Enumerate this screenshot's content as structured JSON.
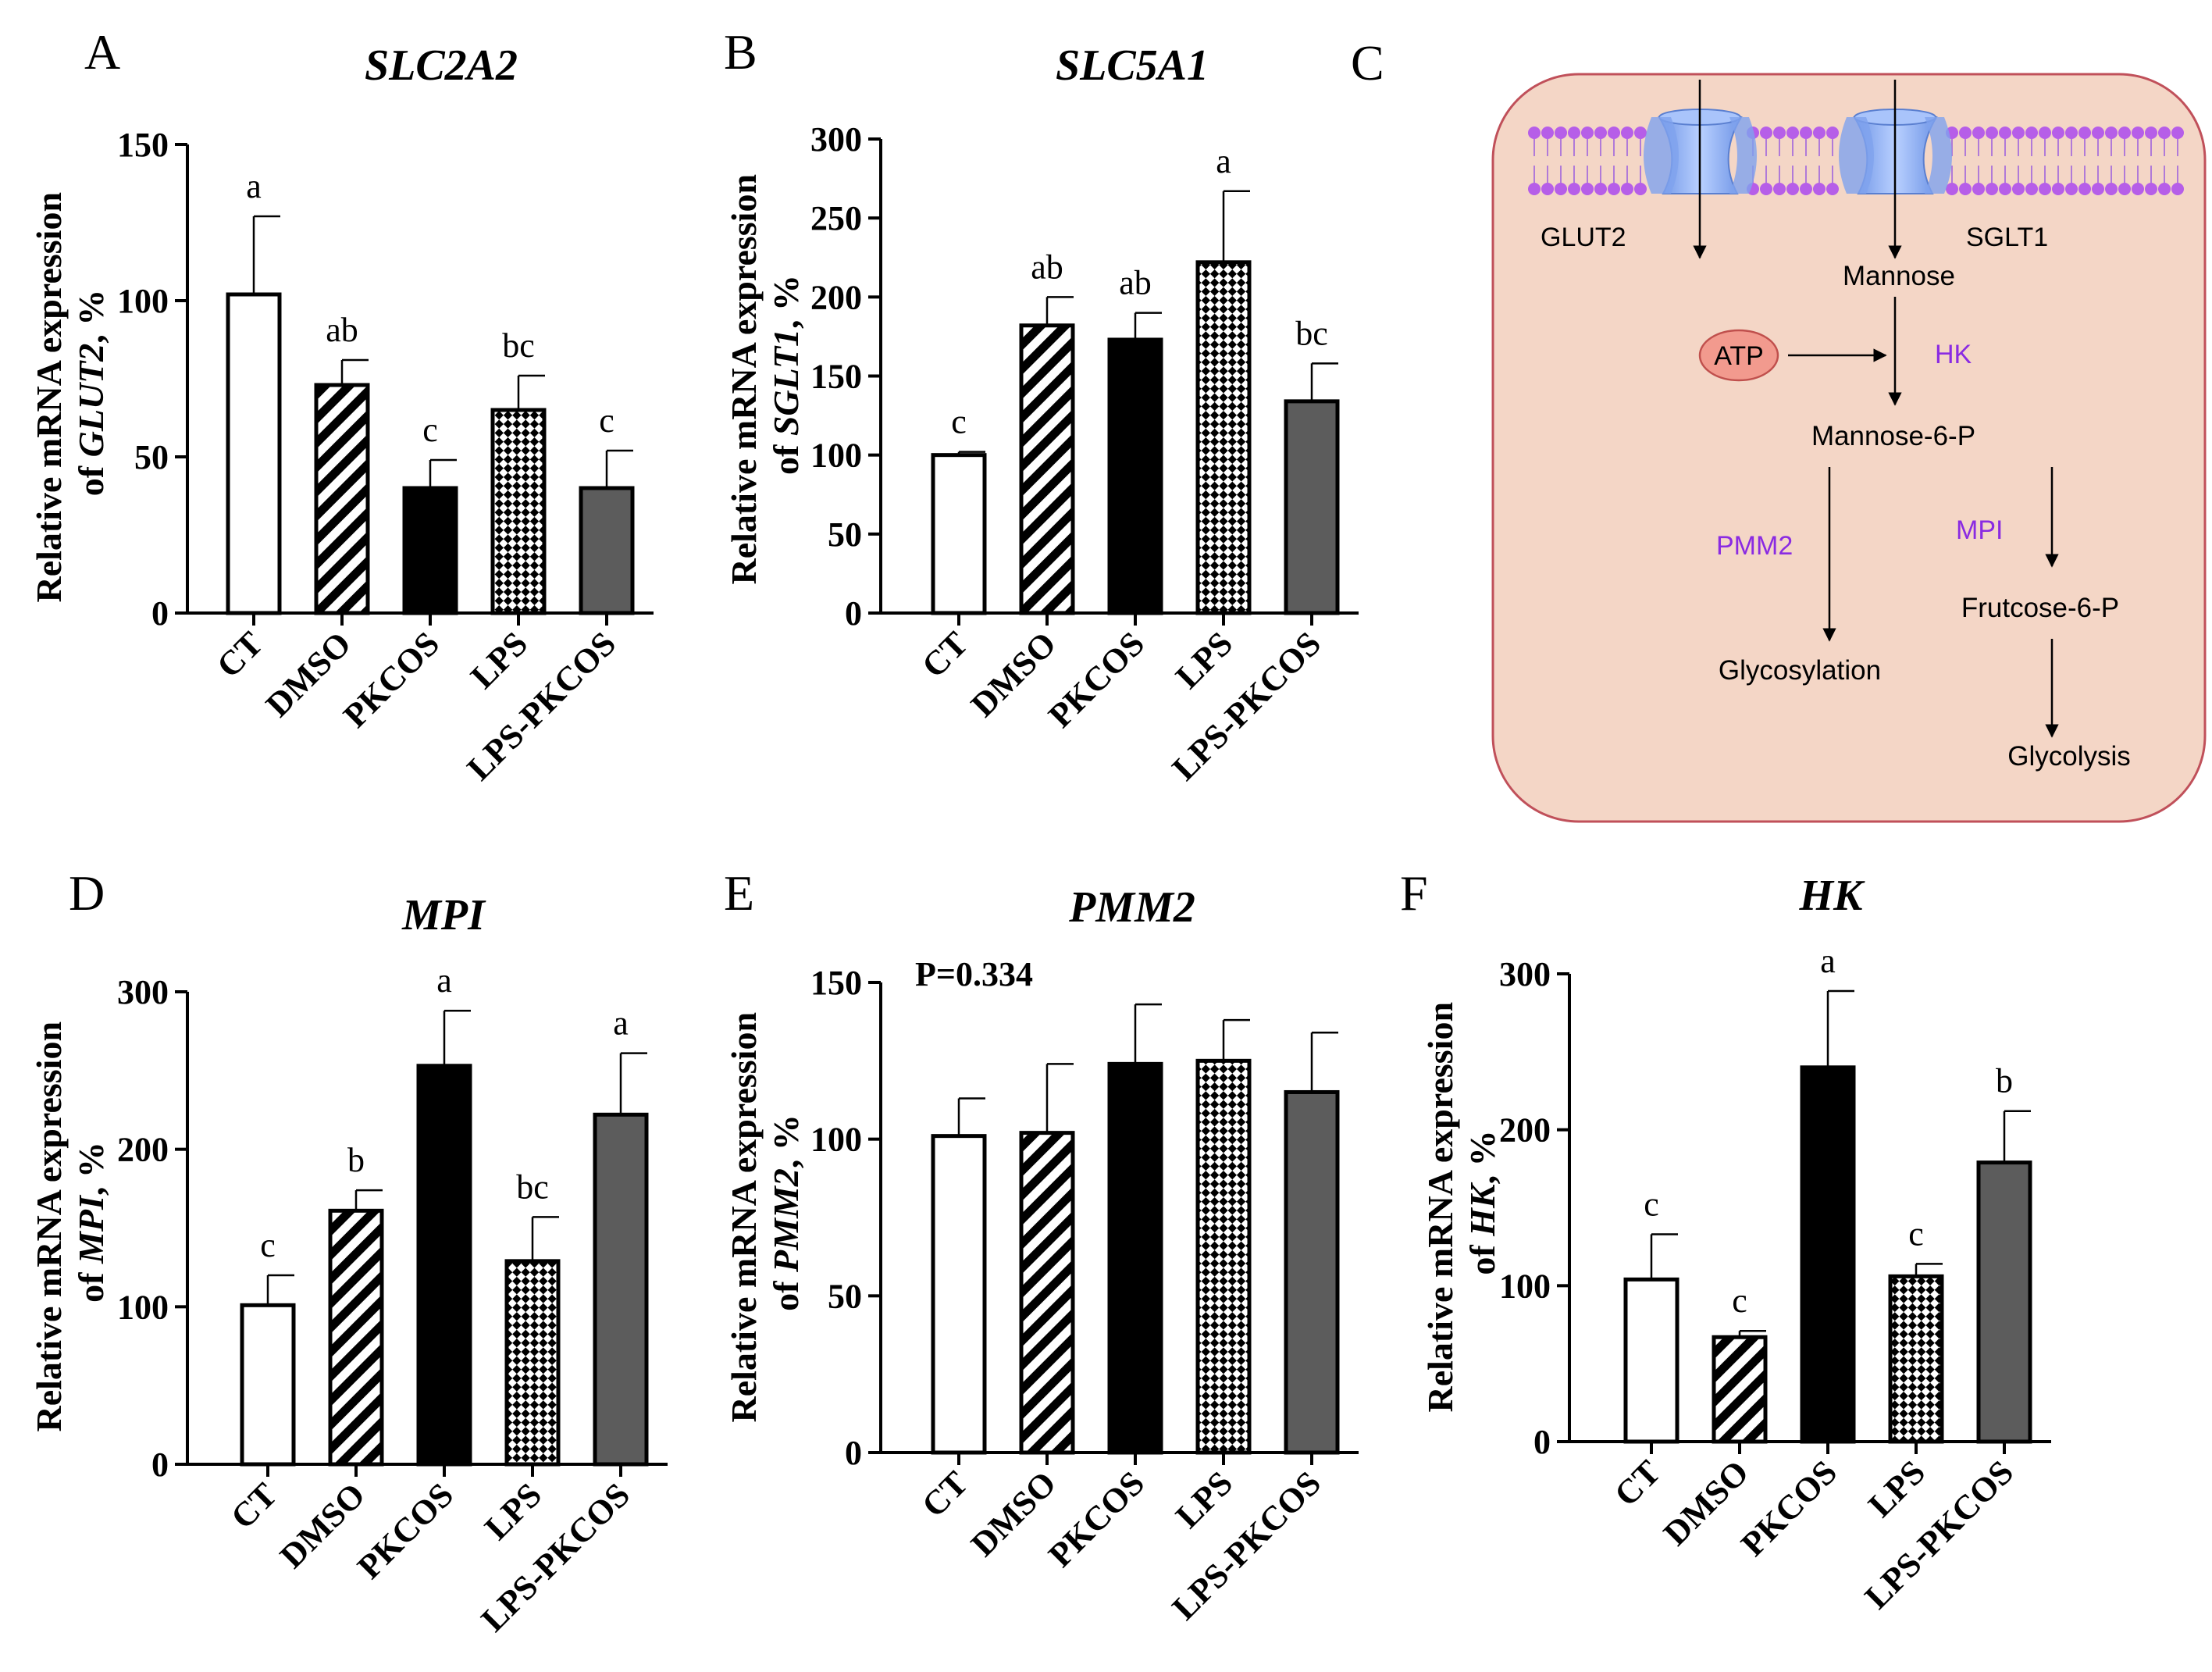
{
  "categories": [
    "CT",
    "DMSO",
    "PKCOS",
    "LPS",
    "LPS-PKCOS"
  ],
  "patterns": [
    "open",
    "hatch",
    "solid",
    "check",
    "gray"
  ],
  "colors": {
    "bar_gray": "#5c5c5c",
    "diagram_bg": "#f4d6c6",
    "diagram_border": "#c0505a",
    "enzyme": "#8a2be2",
    "atp_fill": "#f29a8e",
    "atp_stroke": "#c0504d",
    "channel": "#8fb3f0",
    "lipid_head": "#b65ee8"
  },
  "chart_data": [
    {
      "panel": "A",
      "type": "bar",
      "title": "SLC2A2",
      "ylabel_line1": "Relative mRNA expression",
      "ylabel_prefix": "of ",
      "ylabel_gene": "GLUT2",
      "ylabel_suffix": ", %",
      "ylim": [
        0,
        150
      ],
      "yticks": [
        0,
        50,
        100,
        150
      ],
      "values": [
        102,
        73,
        40,
        65,
        40
      ],
      "errors": [
        25,
        8,
        9,
        11,
        12
      ],
      "letters": [
        "a",
        "ab",
        "c",
        "bc",
        "c"
      ],
      "note": ""
    },
    {
      "panel": "B",
      "type": "bar",
      "title": "SLC5A1",
      "ylabel_line1": "Relative mRNA expression",
      "ylabel_prefix": "of ",
      "ylabel_gene": "SGLT1",
      "ylabel_suffix": ", %",
      "ylim": [
        0,
        300
      ],
      "yticks": [
        0,
        50,
        100,
        150,
        200,
        250,
        300
      ],
      "values": [
        100,
        182,
        173,
        222,
        134
      ],
      "errors": [
        2,
        18,
        17,
        45,
        24
      ],
      "letters": [
        "c",
        "ab",
        "ab",
        "a",
        "bc"
      ],
      "note": ""
    },
    {
      "panel": "D",
      "type": "bar",
      "title": "MPI",
      "ylabel_line1": "Relative mRNA expression",
      "ylabel_prefix": "of ",
      "ylabel_gene": "MPI",
      "ylabel_suffix": ", %",
      "ylim": [
        0,
        300
      ],
      "yticks": [
        0,
        100,
        200,
        300
      ],
      "values": [
        101,
        161,
        253,
        129,
        222
      ],
      "errors": [
        19,
        13,
        35,
        28,
        39
      ],
      "letters": [
        "c",
        "b",
        "a",
        "bc",
        "a"
      ],
      "note": ""
    },
    {
      "panel": "E",
      "type": "bar",
      "title": "PMM2",
      "ylabel_line1": "Relative mRNA expression",
      "ylabel_prefix": "of ",
      "ylabel_gene": "PMM2",
      "ylabel_suffix": ", %",
      "ylim": [
        0,
        150
      ],
      "yticks": [
        0,
        50,
        100,
        150
      ],
      "values": [
        101,
        102,
        124,
        125,
        115
      ],
      "errors": [
        12,
        22,
        19,
        13,
        19
      ],
      "letters": [
        "",
        "",
        "",
        "",
        ""
      ],
      "note": "P=0.334"
    },
    {
      "panel": "F",
      "type": "bar",
      "title": "HK",
      "ylabel_line1": "Relative mRNA expression",
      "ylabel_prefix": "of ",
      "ylabel_gene": "HK",
      "ylabel_suffix": ", %",
      "ylim": [
        0,
        300
      ],
      "yticks": [
        0,
        100,
        200,
        300
      ],
      "values": [
        104,
        67,
        240,
        106,
        179
      ],
      "errors": [
        29,
        4,
        49,
        8,
        33
      ],
      "letters": [
        "c",
        "c",
        "a",
        "c",
        "b"
      ],
      "note": ""
    }
  ],
  "diagram": {
    "panel": "C",
    "glut2": "GLUT2",
    "sglt1": "SGLT1",
    "mannose": "Mannose",
    "atp": "ATP",
    "hk": "HK",
    "mannose6p": "Mannose-6-P",
    "pmm2": "PMM2",
    "mpi": "MPI",
    "fructose6p": "Frutcose-6-P",
    "glycosylation": "Glycosylation",
    "glycolysis": "Glycolysis"
  }
}
